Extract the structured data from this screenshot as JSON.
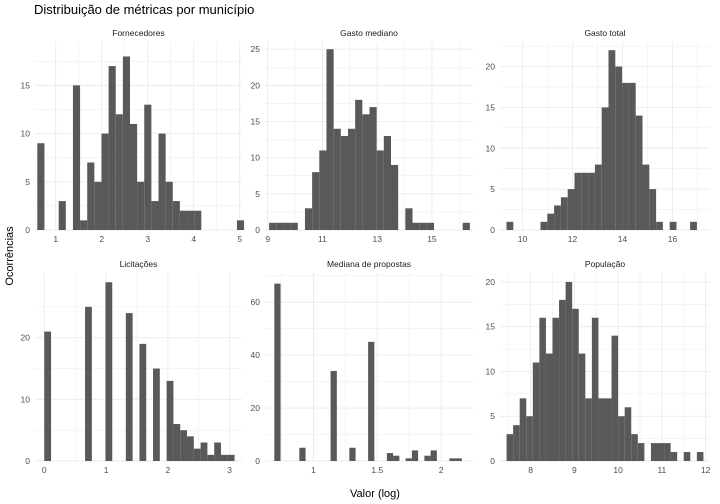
{
  "chart_data": {
    "type": "histogram",
    "title": "Distribuição de métricas por município",
    "xlabel": "Valor (log)",
    "ylabel": "Ocorrências",
    "grid": true,
    "bar_color": "#595959",
    "grid_color": "#ebebeb",
    "panels": [
      {
        "name": "Fornecedores",
        "xlim": [
          0.55,
          5.05
        ],
        "ylim": [
          0,
          19.5
        ],
        "xticks": [
          1,
          2,
          3,
          4,
          5
        ],
        "yticks": [
          0,
          5,
          10,
          15
        ],
        "bin_width": 0.155,
        "bin_starts": [
          0.6,
          0.755,
          0.91,
          1.065,
          1.22,
          1.375,
          1.53,
          1.685,
          1.84,
          1.995,
          2.15,
          2.305,
          2.46,
          2.615,
          2.77,
          2.925,
          3.08,
          3.235,
          3.39,
          3.545,
          3.7,
          3.855,
          4.01,
          4.165,
          4.32,
          4.475,
          4.63,
          4.785,
          4.94
        ],
        "counts": [
          9,
          0,
          0,
          3,
          0,
          15,
          1,
          7,
          5,
          10,
          17,
          12,
          18,
          11,
          5,
          13,
          3,
          10,
          5,
          3,
          2,
          2,
          2,
          0,
          0,
          0,
          0,
          0,
          1
        ]
      },
      {
        "name": "Gasto mediano",
        "xlim": [
          8.9,
          16.5
        ],
        "ylim": [
          0,
          26
        ],
        "xticks": [
          9,
          11,
          13,
          15
        ],
        "yticks": [
          0,
          5,
          10,
          15,
          20,
          25
        ],
        "bin_width": 0.262,
        "bin_starts": [
          9.05,
          9.312,
          9.574,
          9.836,
          10.098,
          10.36,
          10.622,
          10.884,
          11.146,
          11.408,
          11.67,
          11.932,
          12.194,
          12.456,
          12.718,
          12.98,
          13.242,
          13.504,
          13.766,
          14.028,
          14.29,
          14.552,
          14.814,
          15.076,
          15.338,
          15.6,
          15.862,
          16.124
        ],
        "counts": [
          1,
          1,
          1,
          1,
          0,
          3,
          8,
          11,
          25,
          14,
          13,
          14,
          18,
          16,
          17,
          11,
          13,
          9,
          0,
          3,
          1,
          1,
          1,
          0,
          0,
          0,
          0,
          1
        ]
      },
      {
        "name": "Gasto total",
        "xlim": [
          9.1,
          17.5
        ],
        "ylim": [
          0,
          23
        ],
        "xticks": [
          10,
          12,
          14,
          16
        ],
        "yticks": [
          0,
          5,
          10,
          15,
          20
        ],
        "bin_width": 0.272,
        "bin_starts": [
          9.36,
          9.632,
          9.904,
          10.176,
          10.448,
          10.72,
          10.992,
          11.264,
          11.536,
          11.808,
          12.08,
          12.352,
          12.624,
          12.896,
          13.168,
          13.44,
          13.712,
          13.984,
          14.256,
          14.528,
          14.8,
          15.072,
          15.344,
          15.616,
          15.888,
          16.16,
          16.432,
          16.704,
          16.976
        ],
        "counts": [
          1,
          0,
          0,
          0,
          0,
          1,
          2,
          3,
          4,
          5,
          7,
          7,
          7,
          8,
          15,
          22,
          20,
          18,
          18,
          14,
          8,
          5,
          1,
          0,
          1,
          0,
          0,
          1,
          0
        ]
      },
      {
        "name": "Licitações",
        "xlim": [
          -0.15,
          3.2
        ],
        "ylim": [
          0,
          30.5
        ],
        "xticks": [
          0,
          1,
          2,
          3
        ],
        "yticks": [
          0,
          10,
          20
        ],
        "bin_width": 0.11,
        "bin_starts": [
          0.0,
          0.11,
          0.22,
          0.33,
          0.44,
          0.55,
          0.66,
          0.77,
          0.88,
          0.99,
          1.1,
          1.21,
          1.32,
          1.43,
          1.54,
          1.65,
          1.76,
          1.87,
          1.98,
          2.09,
          2.2,
          2.31,
          2.42,
          2.53,
          2.64,
          2.75,
          2.86,
          2.97
        ],
        "counts": [
          21,
          0,
          0,
          0,
          0,
          0,
          25,
          0,
          0,
          29,
          0,
          0,
          24,
          0,
          19,
          0,
          15,
          0,
          13,
          6,
          5,
          4,
          2,
          3,
          1,
          3,
          1,
          1
        ]
      },
      {
        "name": "Mediana de propostas",
        "xlim": [
          0.62,
          2.25
        ],
        "ylim": [
          0,
          71
        ],
        "xticks": [
          1.0,
          1.5,
          2.0
        ],
        "yticks": [
          0,
          20,
          40,
          60
        ],
        "bin_width": 0.049,
        "bin_starts": [
          0.693,
          0.742,
          0.791,
          0.84,
          0.889,
          0.938,
          0.987,
          1.036,
          1.085,
          1.134,
          1.183,
          1.232,
          1.281,
          1.33,
          1.379,
          1.428,
          1.477,
          1.526,
          1.575,
          1.624,
          1.673,
          1.722,
          1.771,
          1.82,
          1.869,
          1.918,
          1.967,
          2.016,
          2.065,
          2.114
        ],
        "counts": [
          67,
          0,
          0,
          0,
          5,
          0,
          0,
          0,
          0,
          34,
          0,
          0,
          5,
          0,
          0,
          45,
          0,
          0,
          3,
          2,
          0,
          1,
          4,
          0,
          2,
          4,
          0,
          0,
          1,
          1
        ]
      },
      {
        "name": "População",
        "xlim": [
          7.3,
          12.1
        ],
        "ylim": [
          0,
          21
        ],
        "xticks": [
          8,
          9,
          10,
          11,
          12
        ],
        "yticks": [
          0,
          5,
          10,
          15,
          20
        ],
        "bin_width": 0.15,
        "bin_starts": [
          7.45,
          7.6,
          7.75,
          7.9,
          8.05,
          8.2,
          8.35,
          8.5,
          8.65,
          8.8,
          8.95,
          9.1,
          9.25,
          9.4,
          9.55,
          9.7,
          9.85,
          10.0,
          10.15,
          10.3,
          10.45,
          10.6,
          10.75,
          10.9,
          11.05,
          11.2,
          11.35,
          11.5,
          11.65,
          11.8
        ],
        "counts": [
          3,
          4,
          7,
          5,
          11,
          16,
          12,
          16,
          18,
          20,
          17,
          12,
          7,
          16,
          7,
          7,
          14,
          5,
          6,
          3,
          2,
          0,
          2,
          2,
          2,
          1,
          0,
          1,
          0,
          1
        ]
      }
    ]
  }
}
